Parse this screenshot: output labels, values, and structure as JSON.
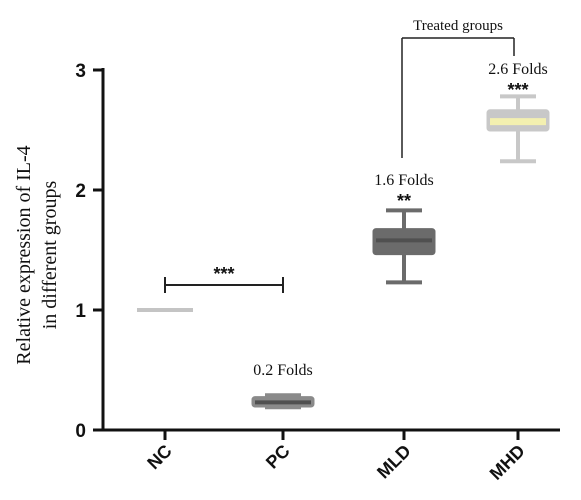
{
  "chart_data": {
    "type": "box",
    "title": "",
    "xlabel": "",
    "ylabel_line1": "Relative expression of IL-4",
    "ylabel_line2": "in different groups",
    "ylim": [
      0,
      3
    ],
    "yticks": [
      "0",
      "1",
      "2",
      "3"
    ],
    "grid": false,
    "legend": "none",
    "categories": [
      "NC",
      "PC",
      "MLD",
      "MHD"
    ],
    "boxes": [
      {
        "name": "NC",
        "min": 1.0,
        "q1": 1.0,
        "median": 1.0,
        "q3": 1.0,
        "max": 1.0,
        "color": "#c4c4c4"
      },
      {
        "name": "PC",
        "min": 0.19,
        "q1": 0.2,
        "median": 0.23,
        "q3": 0.27,
        "max": 0.29,
        "color": "#8a8a8a"
      },
      {
        "name": "MLD",
        "min": 1.23,
        "q1": 1.47,
        "median": 1.58,
        "q3": 1.67,
        "max": 1.83,
        "color": "#6b6b6b"
      },
      {
        "name": "MHD",
        "min": 2.24,
        "q1": 2.5,
        "median": 2.57,
        "q3": 2.66,
        "max": 2.78,
        "color": "#c8c8c8",
        "median_color": "#f3f0b0"
      }
    ],
    "annotations": {
      "pc_fold": "0.2 Folds",
      "mld_fold": "1.6 Folds",
      "mld_sig": "**",
      "mhd_fold": "2.6 Folds",
      "mhd_sig": "***",
      "nc_pc_sig": "***",
      "treated_label": "Treated groups"
    }
  }
}
